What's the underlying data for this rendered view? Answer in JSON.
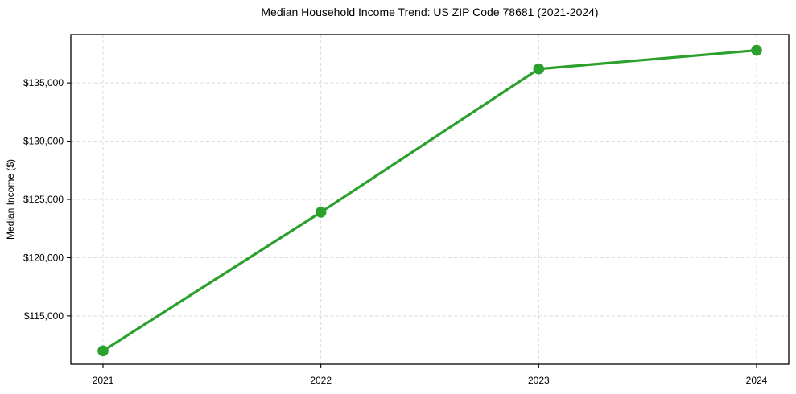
{
  "chart_data": {
    "type": "line",
    "title": "Median Household Income Trend: US ZIP Code 78681 (2021-2024)",
    "xlabel": "",
    "ylabel": "Median Income ($)",
    "categories": [
      "2021",
      "2022",
      "2023",
      "2024"
    ],
    "values": [
      112000,
      123900,
      136200,
      137800
    ],
    "ylim": [
      110850,
      139150
    ],
    "yticks": [
      {
        "value": 115000,
        "label": "$115,000"
      },
      {
        "value": 120000,
        "label": "$120,000"
      },
      {
        "value": 125000,
        "label": "$125,000"
      },
      {
        "value": 130000,
        "label": "$130,000"
      },
      {
        "value": 135000,
        "label": "$135,000"
      }
    ],
    "grid": true,
    "grid_style": "dashed",
    "legend": false,
    "marker": "circle",
    "line_color": "#2ca02c",
    "marker_color": "#2ca02c",
    "grid_color": "#d9d9d9",
    "spine_color": "#000000",
    "tick_color": "#000000",
    "text_color": "#000000"
  }
}
